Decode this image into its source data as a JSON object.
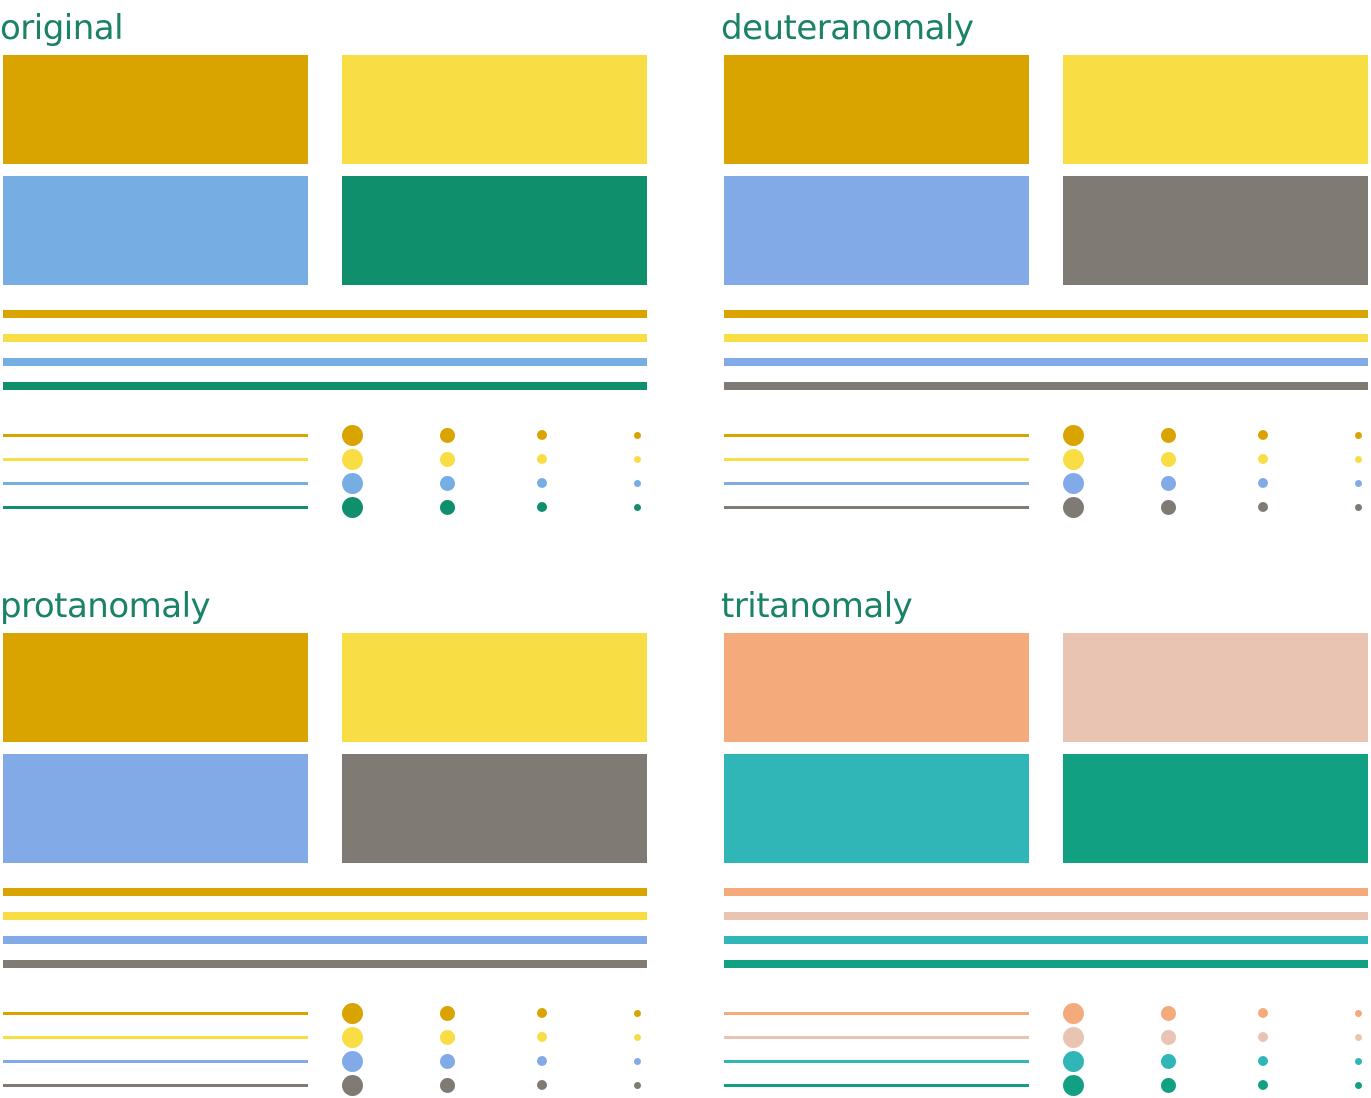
{
  "panels": [
    {
      "title": "original",
      "colors": [
        "#d9a300",
        "#f8dd45",
        "#76aee3",
        "#0f8f6b"
      ]
    },
    {
      "title": "deuteranomaly",
      "colors": [
        "#d9a300",
        "#f8dd45",
        "#81aae7",
        "#7f7a73"
      ]
    },
    {
      "title": "protanomaly",
      "colors": [
        "#d9a300",
        "#f8dd45",
        "#81aae7",
        "#7f7a73"
      ]
    },
    {
      "title": "tritanomaly",
      "colors": [
        "#f5aa7b",
        "#e9c4b2",
        "#30b6b7",
        "#11a182"
      ]
    }
  ]
}
